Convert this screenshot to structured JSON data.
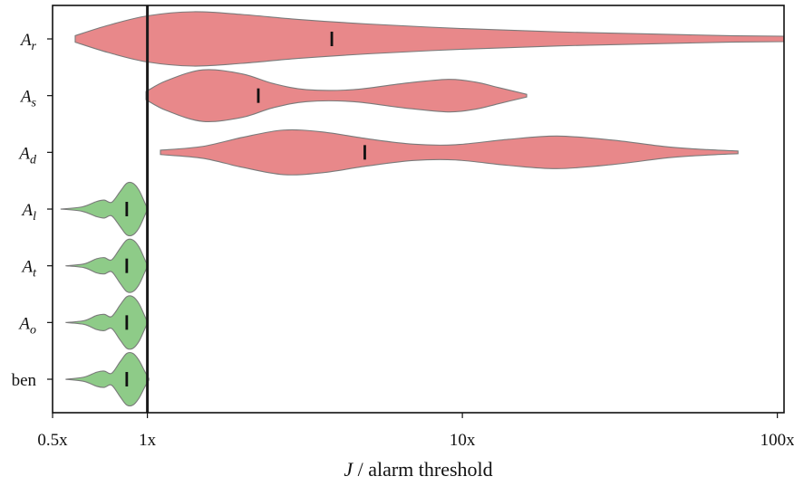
{
  "chart_data": {
    "type": "violin",
    "orientation": "horizontal",
    "x_scale": "log",
    "xlim": [
      0.5,
      105
    ],
    "xlabel": {
      "var": "J",
      "rest": " / alarm threshold"
    },
    "x_ticks": [
      {
        "value": 0.5,
        "label": "0.5x"
      },
      {
        "value": 1,
        "label": "1x"
      },
      {
        "value": 10,
        "label": "10x"
      },
      {
        "value": 100,
        "label": "100x"
      }
    ],
    "reference_line": {
      "x": 1,
      "color": "#1a1a1a"
    },
    "colors": {
      "attack": "#e8888a",
      "benign": "#8ecb88",
      "outline": "#7a7a7a",
      "median": "#111111"
    },
    "categories": [
      {
        "key": "Ar",
        "base": "A",
        "sub": "r",
        "group": "attack",
        "min": 0.59,
        "max": 105,
        "median": 3.85,
        "density": [
          [
            0.59,
            0.12
          ],
          [
            0.75,
            0.5
          ],
          [
            1.0,
            0.85
          ],
          [
            1.4,
            1.0
          ],
          [
            2.0,
            0.9
          ],
          [
            3.0,
            0.72
          ],
          [
            5.0,
            0.55
          ],
          [
            10,
            0.38
          ],
          [
            20,
            0.26
          ],
          [
            40,
            0.18
          ],
          [
            70,
            0.12
          ],
          [
            105,
            0.1
          ]
        ]
      },
      {
        "key": "As",
        "base": "A",
        "sub": "s",
        "group": "attack",
        "min": 0.99,
        "max": 16,
        "median": 2.25,
        "density": [
          [
            0.99,
            0.15
          ],
          [
            1.15,
            0.55
          ],
          [
            1.5,
            0.95
          ],
          [
            2.0,
            0.8
          ],
          [
            2.5,
            0.45
          ],
          [
            3.2,
            0.22
          ],
          [
            4.5,
            0.22
          ],
          [
            6.5,
            0.45
          ],
          [
            9,
            0.6
          ],
          [
            11,
            0.5
          ],
          [
            13,
            0.3
          ],
          [
            16,
            0.05
          ]
        ]
      },
      {
        "key": "Ad",
        "base": "A",
        "sub": "d",
        "group": "attack",
        "min": 1.1,
        "max": 75,
        "median": 4.9,
        "density": [
          [
            1.1,
            0.08
          ],
          [
            1.5,
            0.22
          ],
          [
            2.0,
            0.55
          ],
          [
            2.7,
            0.82
          ],
          [
            3.6,
            0.75
          ],
          [
            5,
            0.5
          ],
          [
            7,
            0.3
          ],
          [
            9.5,
            0.28
          ],
          [
            14,
            0.48
          ],
          [
            20,
            0.6
          ],
          [
            30,
            0.45
          ],
          [
            45,
            0.2
          ],
          [
            60,
            0.1
          ],
          [
            75,
            0.05
          ]
        ]
      },
      {
        "key": "Al",
        "base": "A",
        "sub": "l",
        "group": "benign",
        "min": 0.53,
        "max": 1.0,
        "median": 0.86,
        "density": [
          [
            0.53,
            0.0
          ],
          [
            0.62,
            0.08
          ],
          [
            0.69,
            0.28
          ],
          [
            0.73,
            0.33
          ],
          [
            0.77,
            0.25
          ],
          [
            0.82,
            0.65
          ],
          [
            0.86,
            0.95
          ],
          [
            0.9,
            0.95
          ],
          [
            0.94,
            0.7
          ],
          [
            0.98,
            0.25
          ],
          [
            1.0,
            0.03
          ]
        ]
      },
      {
        "key": "At",
        "base": "A",
        "sub": "t",
        "group": "benign",
        "min": 0.55,
        "max": 1.0,
        "median": 0.86,
        "density": [
          [
            0.55,
            0.0
          ],
          [
            0.63,
            0.07
          ],
          [
            0.69,
            0.26
          ],
          [
            0.73,
            0.3
          ],
          [
            0.77,
            0.22
          ],
          [
            0.82,
            0.65
          ],
          [
            0.86,
            0.95
          ],
          [
            0.9,
            0.95
          ],
          [
            0.94,
            0.7
          ],
          [
            0.98,
            0.25
          ],
          [
            1.0,
            0.03
          ]
        ]
      },
      {
        "key": "Ao",
        "base": "A",
        "sub": "o",
        "group": "benign",
        "min": 0.55,
        "max": 1.0,
        "median": 0.86,
        "density": [
          [
            0.55,
            0.0
          ],
          [
            0.63,
            0.07
          ],
          [
            0.69,
            0.26
          ],
          [
            0.73,
            0.3
          ],
          [
            0.77,
            0.22
          ],
          [
            0.82,
            0.65
          ],
          [
            0.86,
            0.95
          ],
          [
            0.9,
            0.95
          ],
          [
            0.94,
            0.7
          ],
          [
            0.98,
            0.25
          ],
          [
            1.0,
            0.03
          ]
        ]
      },
      {
        "key": "ben",
        "base": "ben",
        "sub": "",
        "group": "benign",
        "min": 0.55,
        "max": 1.01,
        "median": 0.86,
        "density": [
          [
            0.55,
            0.0
          ],
          [
            0.63,
            0.08
          ],
          [
            0.69,
            0.26
          ],
          [
            0.73,
            0.3
          ],
          [
            0.77,
            0.22
          ],
          [
            0.82,
            0.65
          ],
          [
            0.86,
            0.95
          ],
          [
            0.9,
            0.95
          ],
          [
            0.94,
            0.7
          ],
          [
            0.98,
            0.3
          ],
          [
            1.01,
            0.03
          ]
        ]
      }
    ]
  }
}
